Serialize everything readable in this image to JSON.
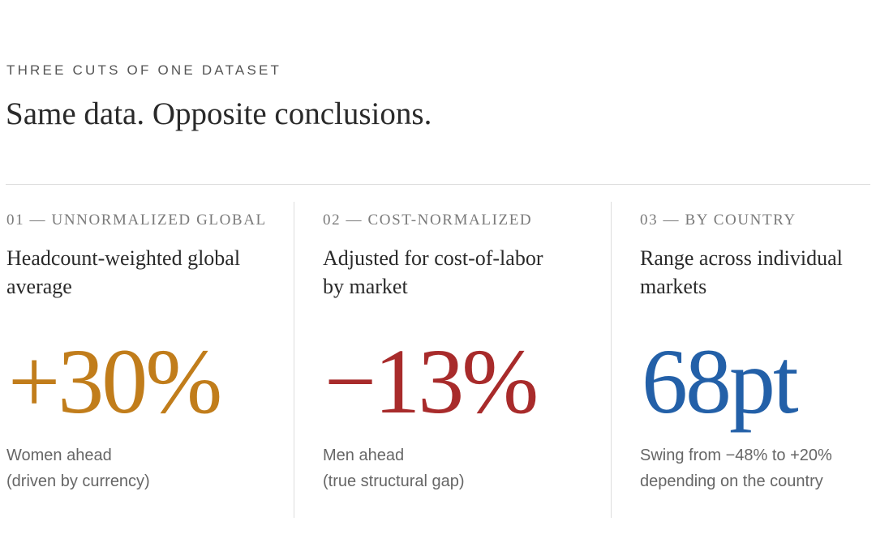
{
  "header": {
    "eyebrow": "THREE CUTS OF ONE DATASET",
    "headline": "Same data. Opposite conclusions."
  },
  "cards": [
    {
      "kicker": "01 — UNNORMALIZED GLOBAL",
      "subtitle": "Headcount-weighted global average",
      "figure": "+30%",
      "color": "#c17d1b",
      "caption_line1": "Women ahead",
      "caption_line2": "(driven by currency)"
    },
    {
      "kicker": "02 — COST-NORMALIZED",
      "subtitle": "Adjusted for cost-of-labor by market",
      "figure": "−13%",
      "color": "#a82b2b",
      "caption_line1": "Men ahead",
      "caption_line2": "(true structural gap)"
    },
    {
      "kicker": "03 — BY COUNTRY",
      "subtitle": "Range across individual markets",
      "figure": "68pt",
      "color": "#2360a8",
      "caption_line1": "Swing from −48% to +20%",
      "caption_line2": "depending on the country"
    }
  ]
}
